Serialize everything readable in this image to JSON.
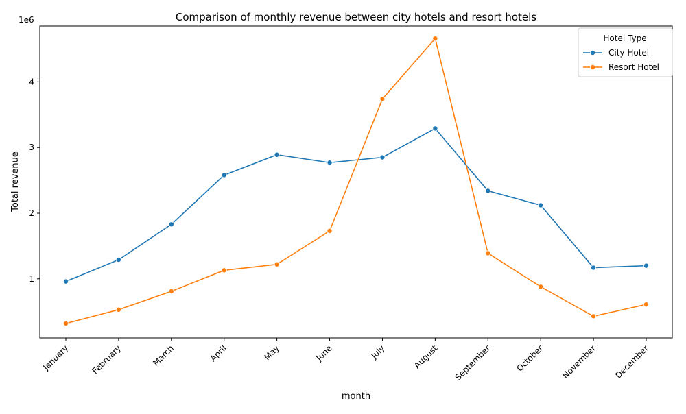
{
  "chart_data": {
    "type": "line",
    "title": "Comparison of monthly revenue between city hotels and resort hotels",
    "xlabel": "month",
    "ylabel": "Total revenue",
    "y_offset_label": "1e6",
    "y_scale_factor": 1000000,
    "categories": [
      "January",
      "February",
      "March",
      "April",
      "May",
      "June",
      "July",
      "August",
      "September",
      "October",
      "November",
      "December"
    ],
    "yticks": [
      1,
      2,
      3,
      4
    ],
    "ylim": [
      0.1,
      4.85
    ],
    "grid": false,
    "legend": {
      "title": "Hotel Type",
      "placement": "top-right"
    },
    "series": [
      {
        "name": "City Hotel",
        "color": "#1f77b4",
        "values": [
          0.96,
          1.29,
          1.83,
          2.58,
          2.89,
          2.77,
          2.85,
          3.29,
          2.34,
          2.12,
          1.17,
          1.2
        ]
      },
      {
        "name": "Resort Hotel",
        "color": "#ff7f0e",
        "values": [
          0.32,
          0.53,
          0.81,
          1.13,
          1.22,
          1.73,
          3.74,
          4.66,
          1.39,
          0.88,
          0.43,
          0.61
        ]
      }
    ]
  }
}
